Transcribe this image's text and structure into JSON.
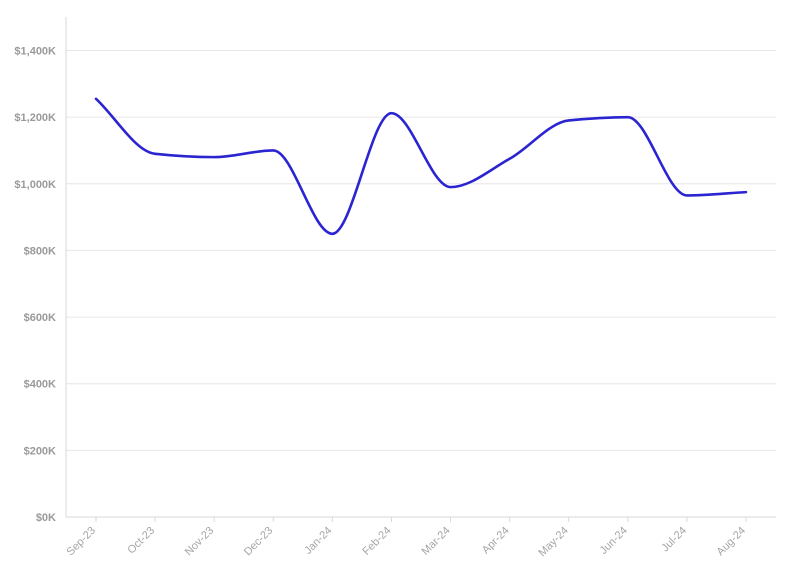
{
  "chart_data": {
    "type": "line",
    "title": "",
    "xlabel": "",
    "ylabel": "",
    "categories": [
      "Sep-23",
      "Oct-23",
      "Nov-23",
      "Dec-23",
      "Jan-24",
      "Feb-24",
      "Mar-24",
      "Apr-24",
      "May-24",
      "Jun-24",
      "Jul-24",
      "Aug-24"
    ],
    "series": [
      {
        "values": [
          1255000,
          1090000,
          1080000,
          1100000,
          850000,
          1212000,
          990000,
          1075000,
          1190000,
          1200000,
          965000,
          975000
        ]
      }
    ],
    "y_ticks": [
      0,
      200000,
      400000,
      600000,
      800000,
      1000000,
      1200000,
      1400000
    ],
    "y_tick_labels": [
      "$0K",
      "$200K",
      "$400K",
      "$600K",
      "$800K",
      "$1,000K",
      "$1,200K",
      "$1,400K"
    ],
    "ylim": [
      0,
      1500000
    ],
    "grid": true,
    "legend": "none",
    "line_color": "#2b24d1"
  }
}
